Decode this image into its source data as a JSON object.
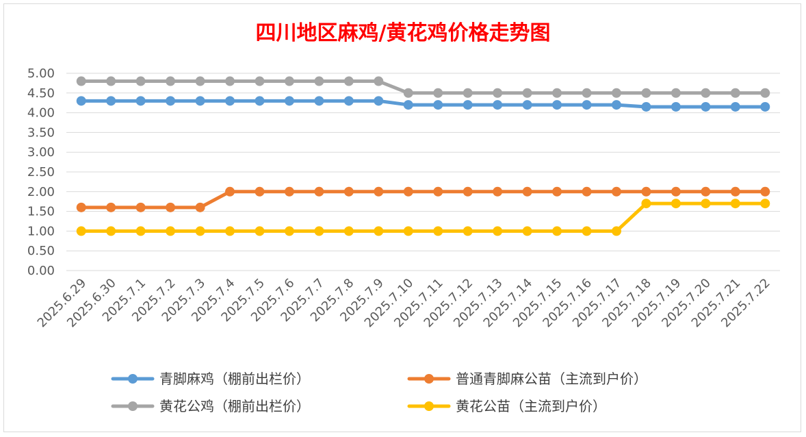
{
  "chart_data": {
    "type": "line",
    "title": "四川地区麻鸡/黄花鸡价格走势图",
    "title_color": "#ff0000",
    "xlabel": "",
    "ylabel": "",
    "ylim": [
      0,
      5
    ],
    "y_ticks": [
      "0.00",
      "0.50",
      "1.00",
      "1.50",
      "2.00",
      "2.50",
      "3.00",
      "3.50",
      "4.00",
      "4.50",
      "5.00"
    ],
    "grid": true,
    "legend_position": "bottom",
    "categories": [
      "2025.6.29",
      "2025.6.30",
      "2025.7.1",
      "2025.7.2",
      "2025.7.3",
      "2025.7.4",
      "2025.7.5",
      "2025.7.6",
      "2025.7.7",
      "2025.7.8",
      "2025.7.9",
      "2025.7.10",
      "2025.7.11",
      "2025.7.12",
      "2025.7.13",
      "2025.7.14",
      "2025.7.15",
      "2025.7.16",
      "2025.7.17",
      "2025.7.18",
      "2025.7.19",
      "2025.7.20",
      "2025.7.21",
      "2025.7.22"
    ],
    "series": [
      {
        "name": "青脚麻鸡（棚前出栏价）",
        "color": "#5b9bd5",
        "values": [
          4.3,
          4.3,
          4.3,
          4.3,
          4.3,
          4.3,
          4.3,
          4.3,
          4.3,
          4.3,
          4.3,
          4.2,
          4.2,
          4.2,
          4.2,
          4.2,
          4.2,
          4.2,
          4.2,
          4.15,
          4.15,
          4.15,
          4.15,
          4.15
        ]
      },
      {
        "name": "普通青脚麻公苗（主流到户价）",
        "color": "#ed7d31",
        "values": [
          1.6,
          1.6,
          1.6,
          1.6,
          1.6,
          2.0,
          2.0,
          2.0,
          2.0,
          2.0,
          2.0,
          2.0,
          2.0,
          2.0,
          2.0,
          2.0,
          2.0,
          2.0,
          2.0,
          2.0,
          2.0,
          2.0,
          2.0,
          2.0
        ]
      },
      {
        "name": "黄花公鸡（棚前出栏价）",
        "color": "#a5a5a5",
        "values": [
          4.8,
          4.8,
          4.8,
          4.8,
          4.8,
          4.8,
          4.8,
          4.8,
          4.8,
          4.8,
          4.8,
          4.5,
          4.5,
          4.5,
          4.5,
          4.5,
          4.5,
          4.5,
          4.5,
          4.5,
          4.5,
          4.5,
          4.5,
          4.5
        ]
      },
      {
        "name": "黄花公苗（主流到户价）",
        "color": "#ffc000",
        "values": [
          1.0,
          1.0,
          1.0,
          1.0,
          1.0,
          1.0,
          1.0,
          1.0,
          1.0,
          1.0,
          1.0,
          1.0,
          1.0,
          1.0,
          1.0,
          1.0,
          1.0,
          1.0,
          1.0,
          1.7,
          1.7,
          1.7,
          1.7,
          1.7
        ]
      }
    ]
  }
}
